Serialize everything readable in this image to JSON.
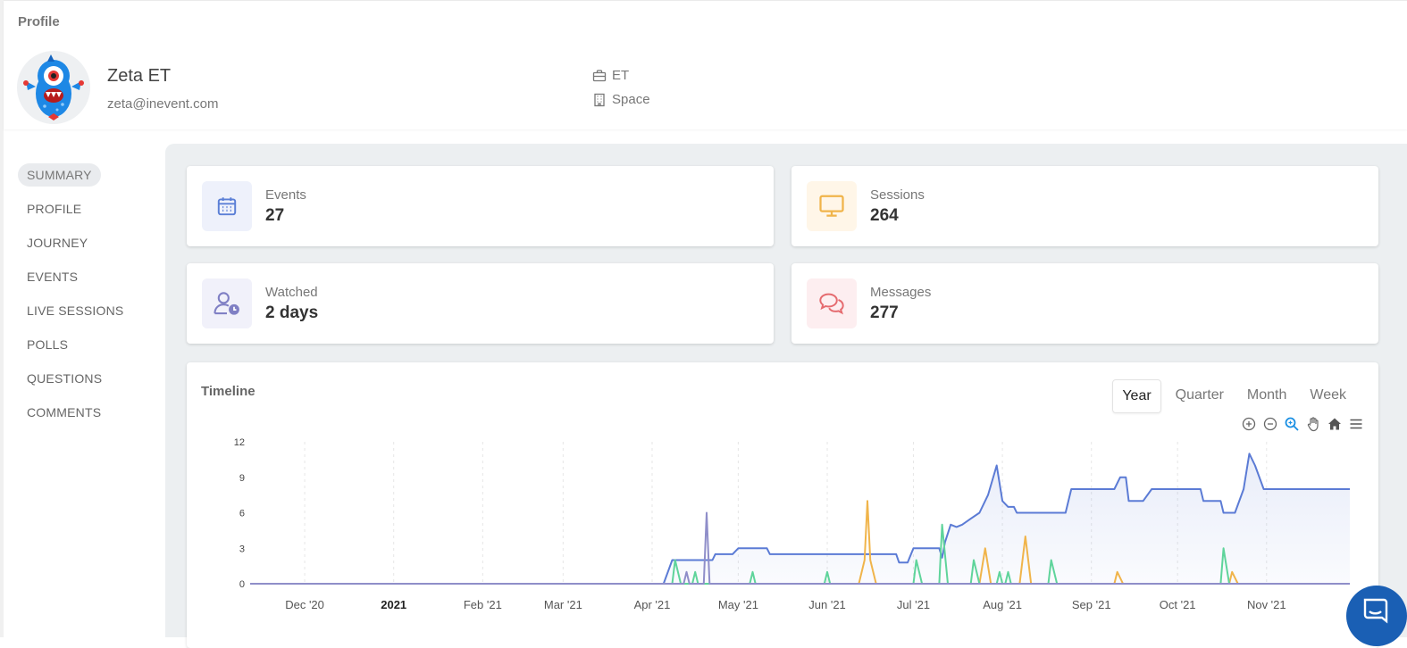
{
  "header": {
    "page_label": "Profile"
  },
  "user": {
    "name": "Zeta ET",
    "email": "zeta@inevent.com",
    "company": "ET",
    "location": "Space"
  },
  "nav": {
    "items": [
      {
        "label": "SUMMARY",
        "active": true
      },
      {
        "label": "PROFILE",
        "active": false
      },
      {
        "label": "JOURNEY",
        "active": false
      },
      {
        "label": "EVENTS",
        "active": false
      },
      {
        "label": "LIVE SESSIONS",
        "active": false
      },
      {
        "label": "POLLS",
        "active": false
      },
      {
        "label": "QUESTIONS",
        "active": false
      },
      {
        "label": "COMMENTS",
        "active": false
      }
    ]
  },
  "stats": {
    "events": {
      "label": "Events",
      "value": "27",
      "icon": "calendar-icon",
      "color": "#5b7fd6"
    },
    "sessions": {
      "label": "Sessions",
      "value": "264",
      "icon": "monitor-icon",
      "color": "#f0b44a"
    },
    "watched": {
      "label": "Watched",
      "value": "2 days",
      "icon": "user-clock-icon",
      "color": "#7f7fc4"
    },
    "messages": {
      "label": "Messages",
      "value": "277",
      "icon": "chat-bubbles-icon",
      "color": "#e56b6f"
    }
  },
  "timeline": {
    "title": "Timeline",
    "ranges": [
      {
        "label": "Year",
        "active": true
      },
      {
        "label": "Quarter",
        "active": false
      },
      {
        "label": "Month",
        "active": false
      },
      {
        "label": "Week",
        "active": false
      }
    ]
  },
  "chart_data": {
    "type": "area",
    "ylim": [
      0,
      12
    ],
    "yticks": [
      "0",
      "3",
      "6",
      "9",
      "12"
    ],
    "xticks": [
      {
        "label": "Dec '20",
        "bold": false
      },
      {
        "label": "2021",
        "bold": true
      },
      {
        "label": "Feb '21",
        "bold": false
      },
      {
        "label": "Mar '21",
        "bold": false
      },
      {
        "label": "Apr '21",
        "bold": false
      },
      {
        "label": "May '21",
        "bold": false
      },
      {
        "label": "Jun '21",
        "bold": false
      },
      {
        "label": "Jul '21",
        "bold": false
      },
      {
        "label": "Aug '21",
        "bold": false
      },
      {
        "label": "Sep '21",
        "bold": false
      },
      {
        "label": "Oct '21",
        "bold": false
      },
      {
        "label": "Nov '21",
        "bold": false
      }
    ],
    "series": [
      {
        "color": "#5b7bd5",
        "area": true,
        "points": [
          [
            "2020-11-12",
            0
          ],
          [
            "2021-04-05",
            0
          ],
          [
            "2021-04-08",
            2
          ],
          [
            "2021-04-22",
            2
          ],
          [
            "2021-04-23",
            2.5
          ],
          [
            "2021-04-29",
            2.5
          ],
          [
            "2021-05-01",
            3
          ],
          [
            "2021-05-11",
            3
          ],
          [
            "2021-05-12",
            2.5
          ],
          [
            "2021-06-25",
            2.5
          ],
          [
            "2021-06-26",
            1.8
          ],
          [
            "2021-06-29",
            1.8
          ],
          [
            "2021-07-01",
            3
          ],
          [
            "2021-07-10",
            3
          ],
          [
            "2021-07-11",
            2.2
          ],
          [
            "2021-07-12",
            3.5
          ],
          [
            "2021-07-14",
            5
          ],
          [
            "2021-07-16",
            4.8
          ],
          [
            "2021-07-18",
            5
          ],
          [
            "2021-07-21",
            5.5
          ],
          [
            "2021-07-24",
            6
          ],
          [
            "2021-07-27",
            7.5
          ],
          [
            "2021-07-30",
            10
          ],
          [
            "2021-08-01",
            7
          ],
          [
            "2021-08-03",
            6.5
          ],
          [
            "2021-08-05",
            6.5
          ],
          [
            "2021-08-06",
            6
          ],
          [
            "2021-08-23",
            6
          ],
          [
            "2021-08-25",
            8
          ],
          [
            "2021-09-09",
            8
          ],
          [
            "2021-09-11",
            9
          ],
          [
            "2021-09-13",
            9
          ],
          [
            "2021-09-14",
            7
          ],
          [
            "2021-09-19",
            7
          ],
          [
            "2021-09-22",
            8
          ],
          [
            "2021-10-09",
            8
          ],
          [
            "2021-10-10",
            7
          ],
          [
            "2021-10-16",
            7
          ],
          [
            "2021-10-17",
            6
          ],
          [
            "2021-10-21",
            6
          ],
          [
            "2021-10-24",
            8
          ],
          [
            "2021-10-26",
            11
          ],
          [
            "2021-10-28",
            10
          ],
          [
            "2021-10-31",
            8
          ],
          [
            "2021-11-30",
            8
          ]
        ]
      },
      {
        "color": "#f0b44a",
        "area": false,
        "points": [
          [
            "2020-11-12",
            0
          ],
          [
            "2021-06-12",
            0
          ],
          [
            "2021-06-14",
            2
          ],
          [
            "2021-06-15",
            7
          ],
          [
            "2021-06-16",
            2
          ],
          [
            "2021-06-18",
            0
          ],
          [
            "2021-07-24",
            0
          ],
          [
            "2021-07-26",
            3
          ],
          [
            "2021-07-28",
            0
          ],
          [
            "2021-08-07",
            0
          ],
          [
            "2021-08-09",
            4
          ],
          [
            "2021-08-11",
            0
          ],
          [
            "2021-09-09",
            0
          ],
          [
            "2021-09-10",
            1
          ],
          [
            "2021-09-12",
            0
          ],
          [
            "2021-10-19",
            0
          ],
          [
            "2021-10-20",
            1
          ],
          [
            "2021-10-22",
            0
          ],
          [
            "2021-11-30",
            0
          ]
        ]
      },
      {
        "color": "#5fd49b",
        "area": false,
        "points": [
          [
            "2020-11-12",
            0
          ],
          [
            "2021-04-08",
            0
          ],
          [
            "2021-04-09",
            2
          ],
          [
            "2021-04-11",
            0
          ],
          [
            "2021-04-15",
            0
          ],
          [
            "2021-04-16",
            1
          ],
          [
            "2021-04-17",
            0
          ],
          [
            "2021-05-05",
            0
          ],
          [
            "2021-05-06",
            1
          ],
          [
            "2021-05-07",
            0
          ],
          [
            "2021-05-31",
            0
          ],
          [
            "2021-06-01",
            1
          ],
          [
            "2021-06-02",
            0
          ],
          [
            "2021-07-01",
            0
          ],
          [
            "2021-07-02",
            2
          ],
          [
            "2021-07-04",
            0
          ],
          [
            "2021-07-10",
            0
          ],
          [
            "2021-07-11",
            5
          ],
          [
            "2021-07-13",
            0
          ],
          [
            "2021-07-21",
            0
          ],
          [
            "2021-07-22",
            2
          ],
          [
            "2021-07-24",
            0
          ],
          [
            "2021-07-30",
            0
          ],
          [
            "2021-07-31",
            1
          ],
          [
            "2021-08-01",
            0
          ],
          [
            "2021-08-02",
            0
          ],
          [
            "2021-08-03",
            1
          ],
          [
            "2021-08-04",
            0
          ],
          [
            "2021-08-17",
            0
          ],
          [
            "2021-08-18",
            2
          ],
          [
            "2021-08-20",
            0
          ],
          [
            "2021-10-16",
            0
          ],
          [
            "2021-10-17",
            3
          ],
          [
            "2021-10-19",
            0
          ],
          [
            "2021-11-30",
            0
          ]
        ]
      },
      {
        "color": "#8f8ec9",
        "area": false,
        "points": [
          [
            "2020-11-12",
            0
          ],
          [
            "2021-04-12",
            0
          ],
          [
            "2021-04-13",
            1
          ],
          [
            "2021-04-14",
            0
          ],
          [
            "2021-04-19",
            0
          ],
          [
            "2021-04-20",
            6
          ],
          [
            "2021-04-21",
            0
          ],
          [
            "2021-11-30",
            0
          ]
        ]
      }
    ]
  }
}
